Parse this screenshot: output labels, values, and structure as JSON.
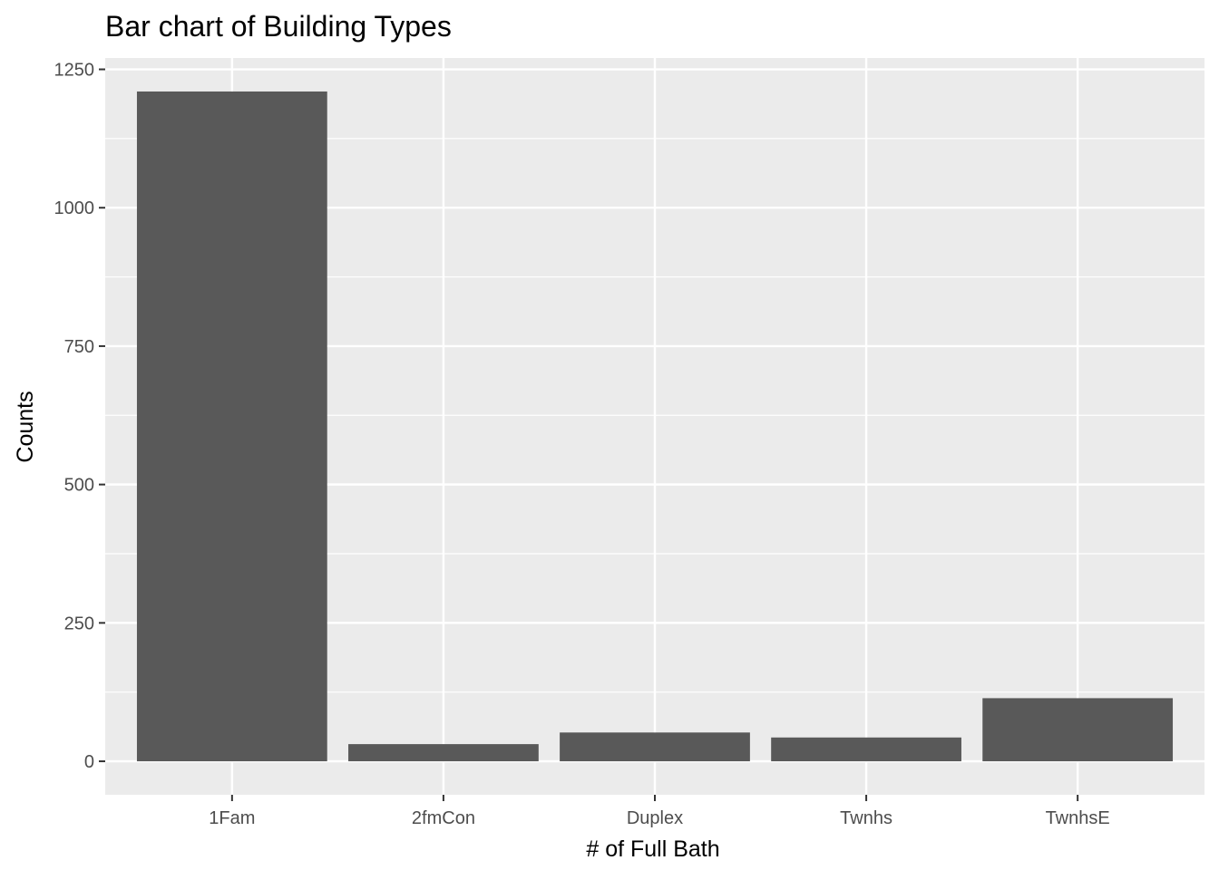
{
  "chart_data": {
    "type": "bar",
    "title": "Bar chart of Building Types",
    "xlabel": "# of Full Bath",
    "ylabel": "Counts",
    "categories": [
      "1Fam",
      "2fmCon",
      "Duplex",
      "Twnhs",
      "TwnhsE"
    ],
    "values": [
      1210,
      31,
      52,
      43,
      114
    ],
    "ylim": [
      -60.5,
      1270.5
    ],
    "yticks": [
      0,
      250,
      500,
      750,
      1000,
      1250
    ],
    "ytick_labels": [
      "0",
      "250",
      "500",
      "750",
      "1000",
      "1250"
    ],
    "grid": true,
    "legend": "none",
    "colors": {
      "bar": "#595959",
      "panel": "#ebebeb",
      "grid": "#ffffff",
      "tick": "#333333"
    }
  }
}
